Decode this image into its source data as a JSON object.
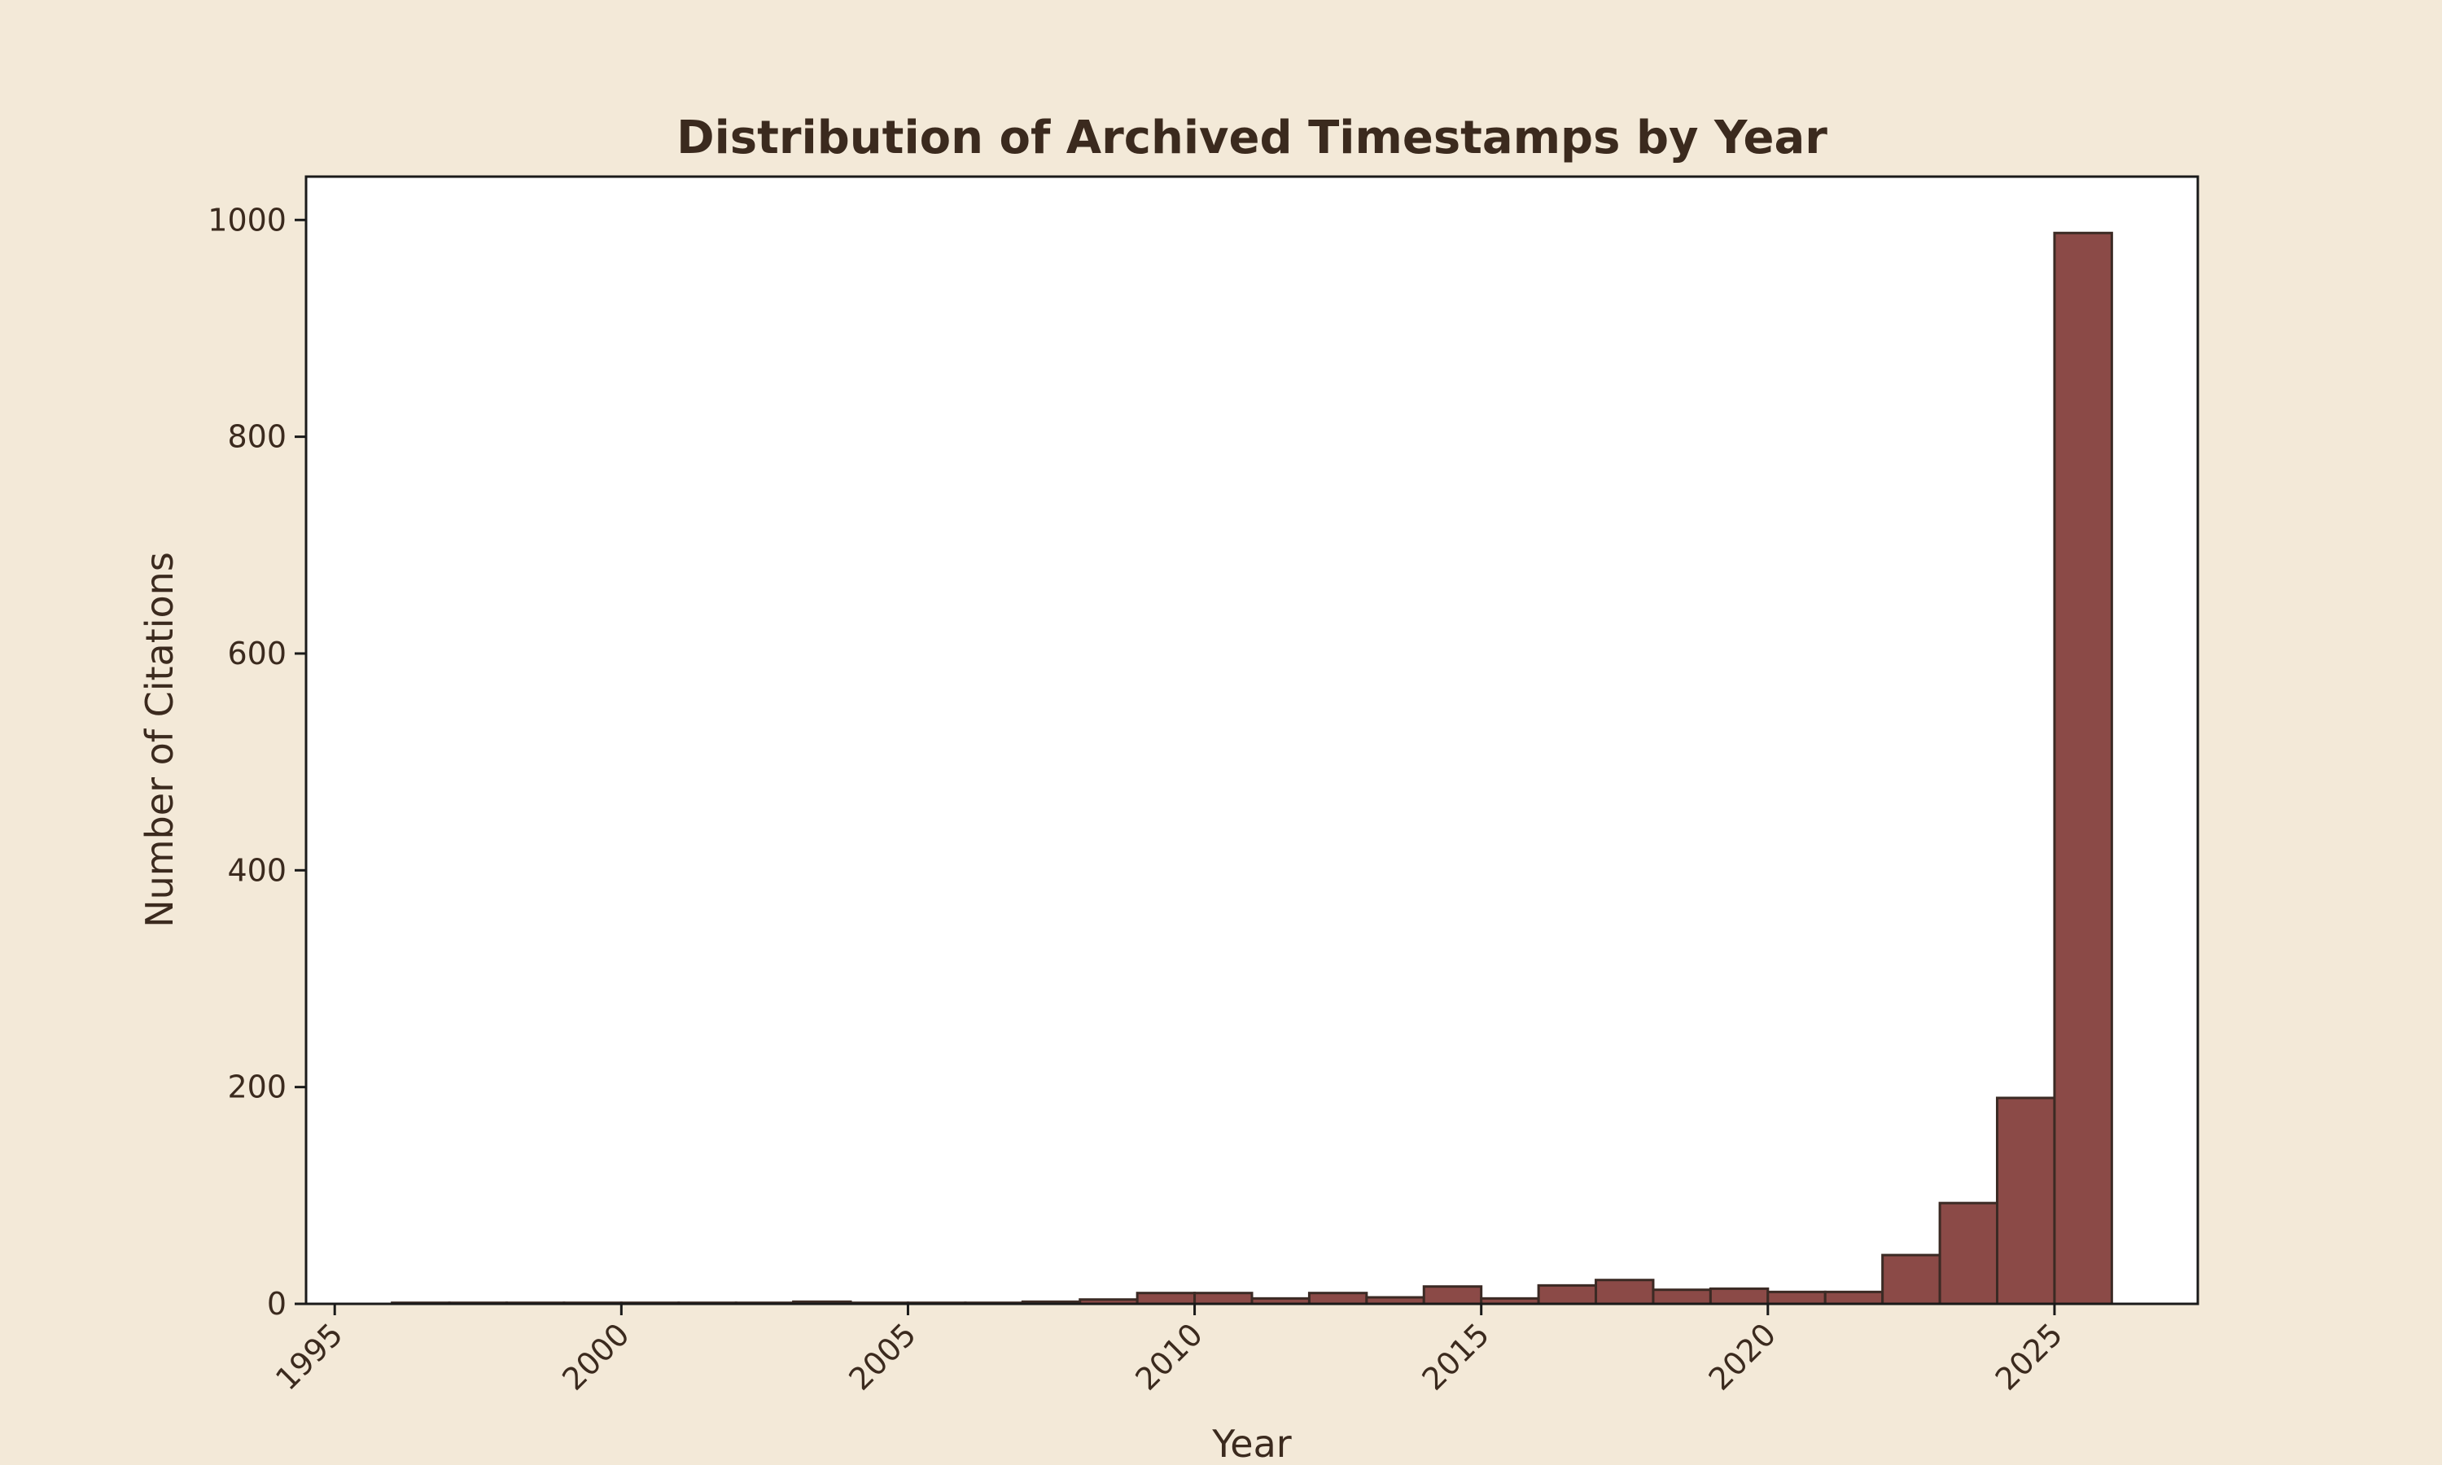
{
  "colors": {
    "background": "#f3e9d8",
    "plot_background": "#ffffff",
    "bar_fill": "#8b4a47",
    "bar_edge": "#3b2a24",
    "text": "#3b2a1e",
    "axis": "#1a1a1a"
  },
  "chart_data": {
    "type": "bar",
    "title": "Distribution of Archived Timestamps by Year",
    "xlabel": "Year",
    "ylabel": "Number of Citations",
    "xlim": [
      1994.5,
      2027.5
    ],
    "ylim": [
      0,
      1040
    ],
    "grid": false,
    "legend": "none",
    "x_ticks": [
      1995,
      2000,
      2005,
      2010,
      2015,
      2020,
      2025
    ],
    "x_tick_labels": [
      "1995",
      "2000",
      "2005",
      "2010",
      "2015",
      "2020",
      "2025"
    ],
    "y_ticks": [
      0,
      200,
      400,
      600,
      800,
      1000
    ],
    "y_tick_labels": [
      "0",
      "200",
      "400",
      "600",
      "800",
      "1000"
    ],
    "bins": [
      {
        "start": 1996,
        "end": 1997,
        "count": 1
      },
      {
        "start": 1997,
        "end": 1998,
        "count": 1
      },
      {
        "start": 1998,
        "end": 1999,
        "count": 1
      },
      {
        "start": 1999,
        "end": 2000,
        "count": 1
      },
      {
        "start": 2000,
        "end": 2001,
        "count": 1
      },
      {
        "start": 2001,
        "end": 2002,
        "count": 1
      },
      {
        "start": 2002,
        "end": 2003,
        "count": 1
      },
      {
        "start": 2003,
        "end": 2004,
        "count": 2
      },
      {
        "start": 2004,
        "end": 2005,
        "count": 1
      },
      {
        "start": 2005,
        "end": 2006,
        "count": 1
      },
      {
        "start": 2006,
        "end": 2007,
        "count": 1
      },
      {
        "start": 2007,
        "end": 2008,
        "count": 2
      },
      {
        "start": 2008,
        "end": 2009,
        "count": 4
      },
      {
        "start": 2009,
        "end": 2010,
        "count": 10
      },
      {
        "start": 2010,
        "end": 2011,
        "count": 10
      },
      {
        "start": 2011,
        "end": 2012,
        "count": 5
      },
      {
        "start": 2012,
        "end": 2013,
        "count": 10
      },
      {
        "start": 2013,
        "end": 2014,
        "count": 6
      },
      {
        "start": 2014,
        "end": 2015,
        "count": 16
      },
      {
        "start": 2015,
        "end": 2016,
        "count": 5
      },
      {
        "start": 2016,
        "end": 2017,
        "count": 17
      },
      {
        "start": 2017,
        "end": 2018,
        "count": 22
      },
      {
        "start": 2018,
        "end": 2019,
        "count": 13
      },
      {
        "start": 2019,
        "end": 2020,
        "count": 14
      },
      {
        "start": 2020,
        "end": 2021,
        "count": 11
      },
      {
        "start": 2021,
        "end": 2022,
        "count": 11
      },
      {
        "start": 2022,
        "end": 2023,
        "count": 45
      },
      {
        "start": 2023,
        "end": 2024,
        "count": 93
      },
      {
        "start": 2024,
        "end": 2025,
        "count": 190
      },
      {
        "start": 2025,
        "end": 2026,
        "count": 988
      }
    ]
  }
}
